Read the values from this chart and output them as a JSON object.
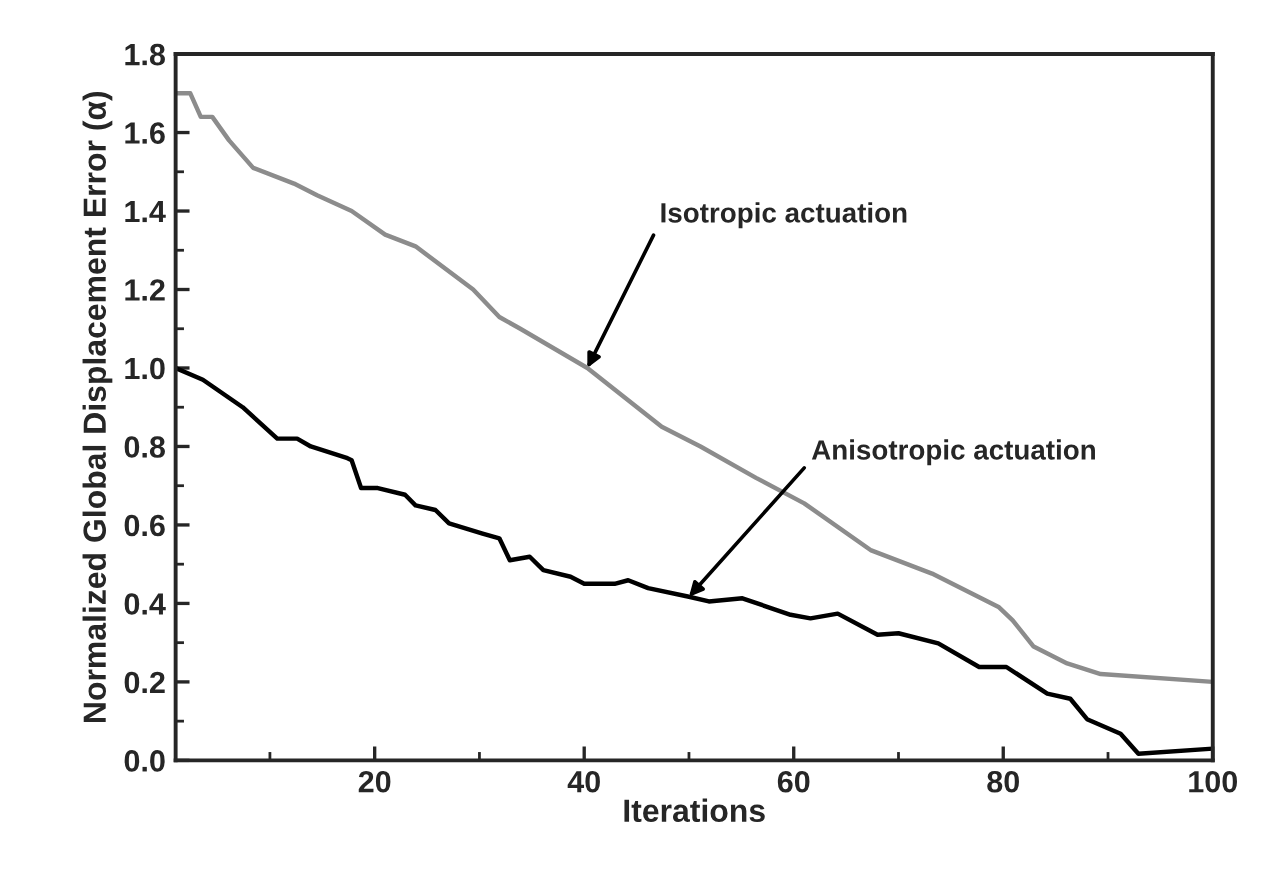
{
  "chart_data": {
    "type": "line",
    "xlabel": "Iterations",
    "ylabel": "Normalized Global Displacement Error (α)",
    "xlim": [
      1,
      100
    ],
    "ylim": [
      0,
      1.8
    ],
    "xticks": [
      20,
      40,
      60,
      80,
      100
    ],
    "yticks": [
      {
        "value": 0,
        "label": "0.0"
      },
      0.2,
      0.4,
      0.6,
      0.8,
      {
        "value": 1,
        "label": "1.0"
      },
      1.2,
      1.4,
      1.6,
      1.8
    ],
    "grid": false,
    "legend": false,
    "marker": "none",
    "line_style": "solid",
    "annotations": [
      {
        "text": "Isotropic actuation",
        "x": 40.3,
        "y": 1.0
      },
      {
        "text": "Anisotropic actuation",
        "x": 50,
        "y": 0.417
      }
    ],
    "series": [
      {
        "color": "#8c8c8c",
        "x": [
          1,
          2.4,
          3.4,
          4.5,
          6.1,
          8.4,
          12.3,
          14.5,
          17.8,
          21,
          23.9,
          29.4,
          31.9,
          33.9,
          40.3,
          47.4,
          51.1,
          56.4,
          61,
          67.4,
          73.2,
          79.6,
          80.9,
          82.9,
          86.1,
          89.3,
          100
        ],
        "values": [
          1.7,
          1.7,
          1.64,
          1.64,
          1.58,
          1.51,
          1.47,
          1.44,
          1.4,
          1.34,
          1.31,
          1.2,
          1.13,
          1.1,
          1.0,
          0.85,
          0.8,
          0.72,
          0.655,
          0.535,
          0.476,
          0.39,
          0.357,
          0.29,
          0.247,
          0.22,
          0.2
        ]
      },
      {
        "color": "#000000",
        "x": [
          1,
          3.6,
          7.4,
          10.7,
          12.6,
          13.9,
          17.4,
          17.8,
          18.7,
          20.3,
          22.9,
          23.9,
          25.8,
          27.1,
          30.3,
          31.9,
          32.9,
          34.8,
          36.1,
          38.7,
          40,
          42.9,
          44.2,
          46.1,
          50,
          51.9,
          55.1,
          59.7,
          61.6,
          64.2,
          68,
          70,
          73.8,
          77.7,
          80.3,
          84.2,
          86.4,
          88,
          91.2,
          92.9,
          100
        ],
        "values": [
          1.0,
          0.97,
          0.9,
          0.82,
          0.82,
          0.8,
          0.77,
          0.765,
          0.694,
          0.694,
          0.677,
          0.65,
          0.638,
          0.604,
          0.578,
          0.566,
          0.51,
          0.519,
          0.485,
          0.468,
          0.45,
          0.45,
          0.459,
          0.439,
          0.417,
          0.405,
          0.413,
          0.371,
          0.362,
          0.374,
          0.32,
          0.324,
          0.298,
          0.238,
          0.238,
          0.17,
          0.157,
          0.105,
          0.068,
          0.017,
          0.03
        ]
      }
    ]
  }
}
